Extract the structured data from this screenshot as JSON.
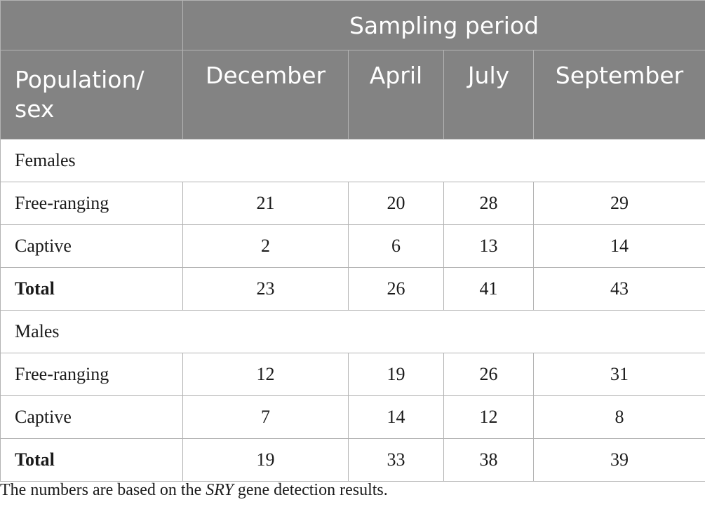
{
  "header": {
    "span_title": "Sampling period",
    "row_header_line1": "Population/",
    "row_header_line2": "sex",
    "months": [
      "December",
      "April",
      "July",
      "September"
    ]
  },
  "groups": [
    {
      "label": "Females",
      "rows": [
        {
          "label": "Free-ranging",
          "values": [
            "21",
            "20",
            "28",
            "29"
          ]
        },
        {
          "label": "Captive",
          "values": [
            "2",
            "6",
            "13",
            "14"
          ]
        },
        {
          "label": "Total",
          "values": [
            "23",
            "26",
            "41",
            "43"
          ]
        }
      ]
    },
    {
      "label": "Males",
      "rows": [
        {
          "label": "Free-ranging",
          "values": [
            "12",
            "19",
            "26",
            "31"
          ]
        },
        {
          "label": "Captive",
          "values": [
            "7",
            "14",
            "12",
            "8"
          ]
        },
        {
          "label": "Total",
          "values": [
            "19",
            "33",
            "38",
            "39"
          ]
        }
      ]
    }
  ],
  "footnote": {
    "before": "The numbers are based on the ",
    "gene": "SRY",
    "after": " gene detection results."
  }
}
